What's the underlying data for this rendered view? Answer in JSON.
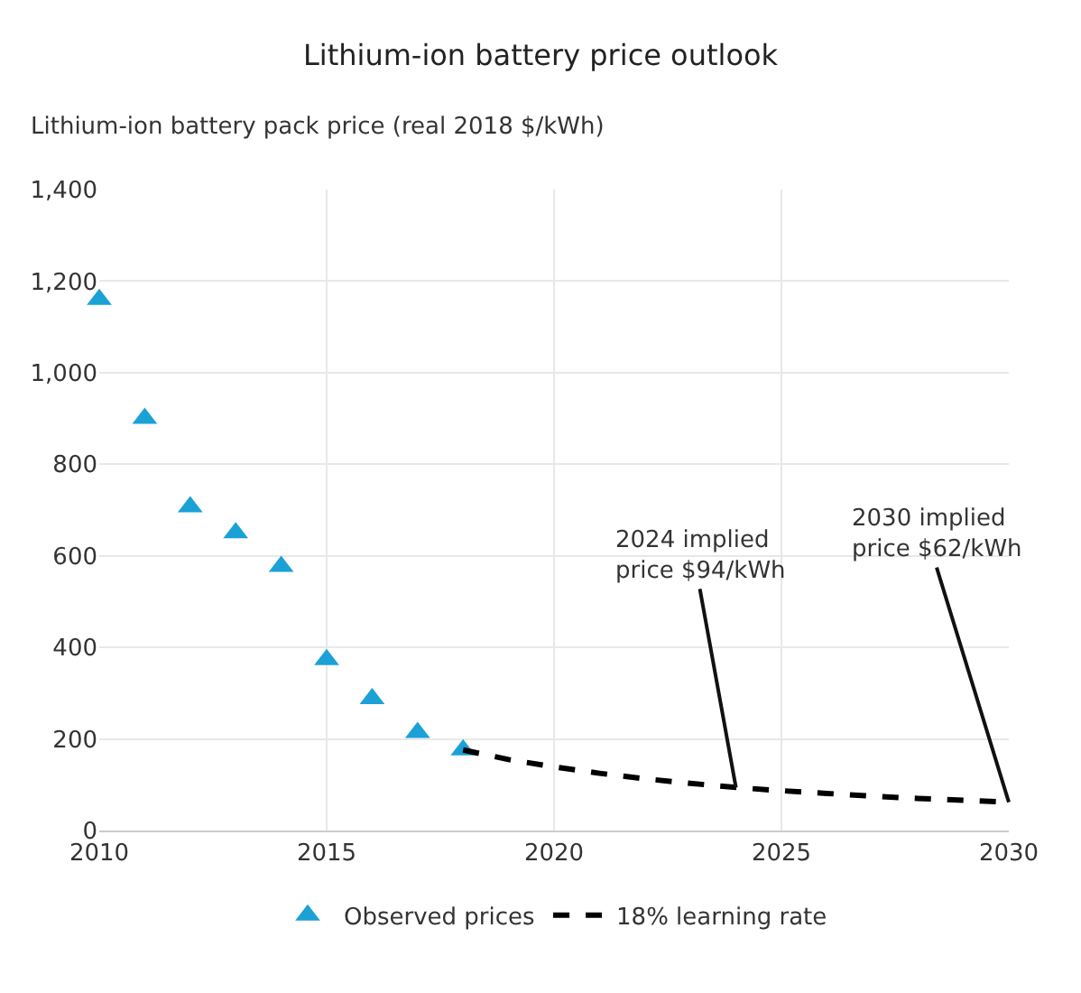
{
  "chart_data": {
    "type": "scatter",
    "title": "Lithium-ion battery price outlook",
    "ylabel": "Lithium-ion battery pack price (real 2018 $/kWh)",
    "xlim": [
      2010,
      2030
    ],
    "xticks": [
      2010,
      2015,
      2020,
      2025,
      2030
    ],
    "ylim": [
      0,
      1400
    ],
    "yticks": [
      0,
      {
        "value": 200,
        "label": "200"
      },
      400,
      600,
      800,
      {
        "value": 1000,
        "label": "1,000"
      },
      {
        "value": 1200,
        "label": "1,200"
      },
      {
        "value": 1400,
        "label": "1,400"
      }
    ],
    "grid": true,
    "legend": "bottom",
    "series": [
      {
        "name": "Observed prices",
        "marker": "triangle",
        "color": "#1ba1d6",
        "x": [
          2010,
          2011,
          2012,
          2013,
          2014,
          2015,
          2016,
          2017,
          2018
        ],
        "values": [
          1160,
          900,
          707,
          650,
          577,
          373,
          288,
          214,
          176
        ]
      },
      {
        "name": "18% learning rate",
        "type": "line",
        "line_style": "dashed",
        "color": "#000000",
        "x": [
          2018,
          2019,
          2020,
          2021,
          2022,
          2023,
          2024,
          2025,
          2026,
          2027,
          2028,
          2029,
          2030
        ],
        "values": [
          176,
          155,
          139,
          125,
          113,
          103,
          94,
          87,
          81,
          75,
          70,
          66,
          62
        ]
      }
    ],
    "annotations": [
      {
        "text": "2024 implied\nprice $94/kWh",
        "x": 2024,
        "y": 94
      },
      {
        "text": "2030 implied\nprice $62/kWh",
        "x": 2030,
        "y": 62
      }
    ]
  }
}
